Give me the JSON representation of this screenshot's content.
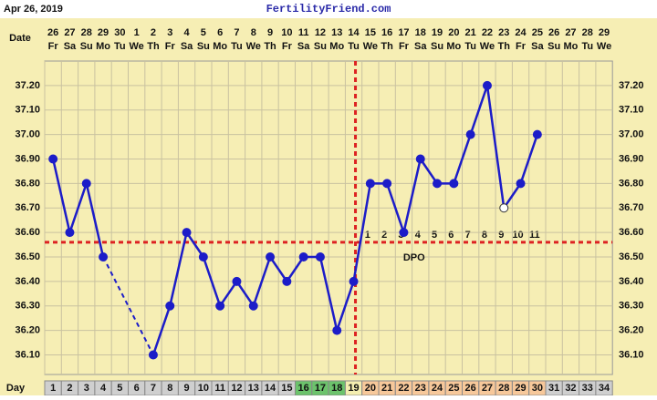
{
  "chart_data": {
    "type": "line",
    "title": "FertilityFriend.com",
    "chart_date": "Apr 26, 2019",
    "date_label": "Date",
    "day_label": "Day",
    "dpo_label": "DPO",
    "dates": [
      26,
      27,
      28,
      29,
      30,
      1,
      2,
      3,
      4,
      5,
      6,
      7,
      8,
      9,
      10,
      11,
      12,
      13,
      14,
      15,
      16,
      17,
      18,
      19,
      20,
      21,
      22,
      23,
      24,
      25,
      26,
      27,
      28,
      29
    ],
    "weekdays": [
      "Fr",
      "Sa",
      "Su",
      "Mo",
      "Tu",
      "We",
      "Th",
      "Fr",
      "Sa",
      "Su",
      "Mo",
      "Tu",
      "We",
      "Th",
      "Fr",
      "Sa",
      "Su",
      "Mo",
      "Tu",
      "We",
      "Th",
      "Fr",
      "Sa",
      "Su",
      "Mo",
      "Tu",
      "We",
      "Th",
      "Fr",
      "Sa",
      "Su",
      "Mo",
      "Tu",
      "We"
    ],
    "categories": [
      1,
      2,
      3,
      4,
      5,
      6,
      7,
      8,
      9,
      10,
      11,
      12,
      13,
      14,
      15,
      16,
      17,
      18,
      19,
      20,
      21,
      22,
      23,
      24,
      25,
      26,
      27,
      28,
      29,
      30,
      31,
      32,
      33,
      34
    ],
    "values": [
      36.9,
      36.6,
      36.8,
      36.5,
      null,
      null,
      36.1,
      36.3,
      36.6,
      36.5,
      36.3,
      36.4,
      36.3,
      36.5,
      36.4,
      36.5,
      36.5,
      36.2,
      36.4,
      36.8,
      36.8,
      36.6,
      36.9,
      36.8,
      36.8,
      37.0,
      37.2,
      36.7,
      36.8,
      37.0,
      null,
      null,
      null,
      null
    ],
    "dpo": [
      null,
      null,
      null,
      null,
      null,
      null,
      null,
      null,
      null,
      null,
      null,
      null,
      null,
      null,
      null,
      null,
      null,
      null,
      null,
      1,
      2,
      3,
      4,
      5,
      6,
      7,
      8,
      9,
      10,
      11,
      null,
      null,
      null,
      null
    ],
    "day_fill": [
      "#cfcfcf",
      "#cfcfcf",
      "#cfcfcf",
      "#cfcfcf",
      "#cfcfcf",
      "#cfcfcf",
      "#cfcfcf",
      "#cfcfcf",
      "#cfcfcf",
      "#cfcfcf",
      "#cfcfcf",
      "#cfcfcf",
      "#cfcfcf",
      "#cfcfcf",
      "#cfcfcf",
      "#6cc36c",
      "#6cc36c",
      "#6cc36c",
      "#f4eeb0",
      "#f7c89a",
      "#f7c89a",
      "#f7c89a",
      "#f7c89a",
      "#f7c89a",
      "#f7c89a",
      "#f7c89a",
      "#f7c89a",
      "#f7c89a",
      "#f7c89a",
      "#f7c89a",
      "#cfcfcf",
      "#cfcfcf",
      "#cfcfcf",
      "#cfcfcf"
    ],
    "open_marker_days": [
      28
    ],
    "coverline": 36.56,
    "ovulation_day": 19,
    "color": "#1c1cc8",
    "ylim": [
      36.02,
      37.3
    ],
    "yticks": [
      {
        "value": 36.1,
        "label": "36.10"
      },
      {
        "value": 36.2,
        "label": "36.20"
      },
      {
        "value": 36.3,
        "label": "36.30"
      },
      {
        "value": 36.4,
        "label": "36.40"
      },
      {
        "value": 36.5,
        "label": "36.50"
      },
      {
        "value": 36.6,
        "label": "36.60"
      },
      {
        "value": 36.7,
        "label": "36.70"
      },
      {
        "value": 36.8,
        "label": "36.80"
      },
      {
        "value": 36.9,
        "label": "36.90"
      },
      {
        "value": 37.0,
        "label": "37.00"
      },
      {
        "value": 37.1,
        "label": "37.10"
      },
      {
        "value": 37.2,
        "label": "37.20"
      }
    ],
    "grid": true
  }
}
